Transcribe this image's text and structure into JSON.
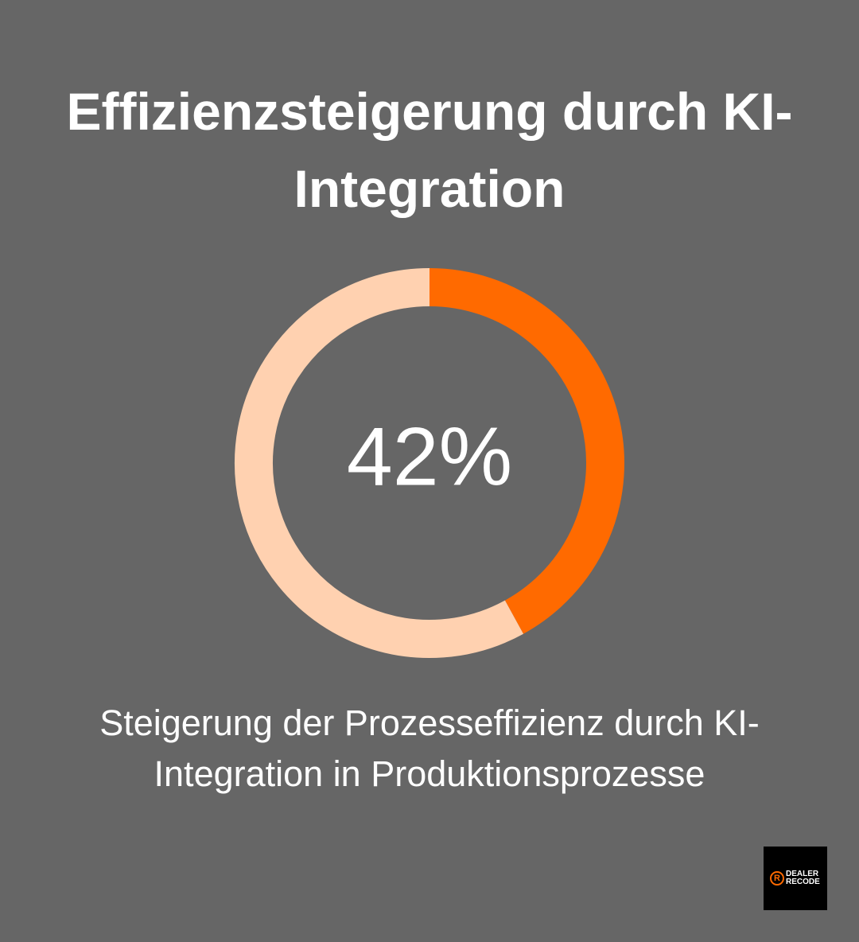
{
  "chart_data": {
    "type": "donut",
    "title": "Effizienzsteigerung durch KI-Integration",
    "values": [
      42,
      58
    ],
    "value_labels": [
      "42%",
      null
    ],
    "colors": [
      "#ff6a00",
      "#ffd1b0"
    ],
    "description": "Steigerung der Prozesseffizienz durch KI-Integration in Produktionsprozesse"
  },
  "logo": {
    "mark": "R",
    "line1": "DEALER",
    "line2": "RECODE"
  }
}
